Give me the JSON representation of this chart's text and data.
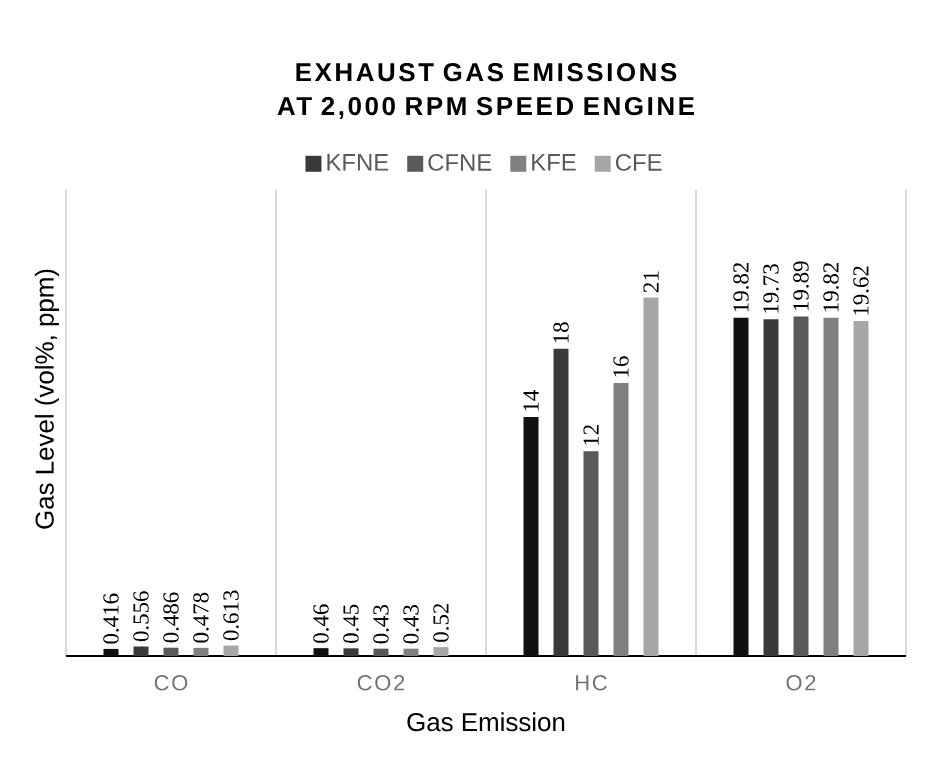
{
  "chart_data": {
    "type": "bar",
    "title": "EXHAUST GAS EMISSIONS AT 2,000 RPM SPEED ENGINE",
    "xlabel": "Gas Emission",
    "ylabel": "Gas Level (vol%, ppm)",
    "categories": [
      "CO",
      "CO2",
      "HC",
      "O2"
    ],
    "series": [
      {
        "color": "#111111",
        "values": [
          0.416,
          0.46,
          14,
          19.82
        ]
      },
      {
        "name": "KFNE",
        "color": "#3a3a3a",
        "values": [
          0.556,
          0.45,
          18,
          19.73
        ]
      },
      {
        "name": "CFNE",
        "color": "#595959",
        "values": [
          0.486,
          0.43,
          12,
          19.89
        ]
      },
      {
        "name": "KFE",
        "color": "#808080",
        "values": [
          0.478,
          0.43,
          16,
          19.82
        ]
      },
      {
        "name": "CFE",
        "color": "#a6a6a6",
        "values": [
          0.613,
          0.52,
          21,
          19.62
        ]
      }
    ],
    "data_labels": true,
    "grid": "x",
    "legend": "top"
  }
}
